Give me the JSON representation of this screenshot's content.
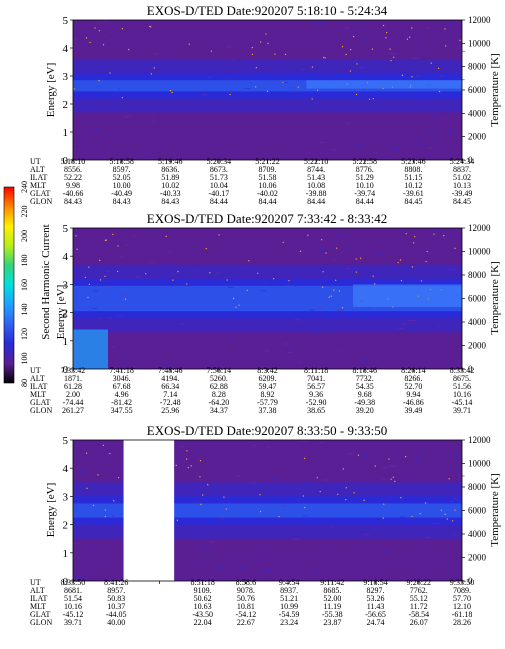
{
  "colors": {
    "background": "#5a1f95",
    "band_mid": "#2a2ad8",
    "band_core": "#2f62f0",
    "band_bright": "#3f86ff",
    "colorbar": [
      "#000000",
      "#5a1f95",
      "#2a2ad8",
      "#2f62f0",
      "#1ea0ff",
      "#00e0e0",
      "#33d47a",
      "#b8ee18",
      "#fff000",
      "#ff8800",
      "#ff0000"
    ]
  },
  "colorbar": {
    "label": "Second Harmonic Current",
    "ticks": [
      "80",
      "100",
      "120",
      "140",
      "160",
      "180",
      "200",
      "220",
      "240"
    ]
  },
  "row_labels": [
    "UT",
    "ALT",
    "ILAT",
    "MLT",
    "GLAT",
    "GLON"
  ],
  "chart_data": [
    {
      "type": "heatmap",
      "title": "EXOS-D/TED   Date:920207   5:18:10 - 5:24:34",
      "ylabel": "Energy [eV]",
      "ylabel_right": "Temperature [K]",
      "ylim": [
        0,
        5
      ],
      "ylim_right": [
        0,
        12000
      ],
      "yticks": [
        "0",
        "1",
        "2",
        "3",
        "4",
        "5"
      ],
      "yticks_right": [
        "0",
        "2000",
        "4000",
        "6000",
        "8000",
        "10000",
        "12000"
      ],
      "band_energy_ev": [
        2.2,
        3.1
      ],
      "gap": null,
      "columns": [
        {
          "UT": "5:18:10",
          "ALT": "8556.",
          "ILAT": "52.22",
          "MLT": "9.98",
          "GLAT": "-40.66",
          "GLON": "84.43"
        },
        {
          "UT": "5:18:58",
          "ALT": "8597.",
          "ILAT": "52.05",
          "MLT": "10.00",
          "GLAT": "-40.49",
          "GLON": "84.43"
        },
        {
          "UT": "5:19:46",
          "ALT": "8636.",
          "ILAT": "51.89",
          "MLT": "10.02",
          "GLAT": "-40.33",
          "GLON": "84.43"
        },
        {
          "UT": "5:20:34",
          "ALT": "8673.",
          "ILAT": "51.73",
          "MLT": "10.04",
          "GLAT": "-40.17",
          "GLON": "84.44"
        },
        {
          "UT": "5:21:22",
          "ALT": "8709.",
          "ILAT": "51.58",
          "MLT": "10.06",
          "GLAT": "-40.02",
          "GLON": "84.44"
        },
        {
          "UT": "5:22:10",
          "ALT": "8744.",
          "ILAT": "51.43",
          "MLT": "10.08",
          "GLAT": "-39.88",
          "GLON": "84.44"
        },
        {
          "UT": "5:22:58",
          "ALT": "8776.",
          "ILAT": "51.29",
          "MLT": "10.10",
          "GLAT": "-39.74",
          "GLON": "84.44"
        },
        {
          "UT": "5:23:46",
          "ALT": "8808.",
          "ILAT": "51.15",
          "MLT": "10.12",
          "GLAT": "-39.61",
          "GLON": "84.45"
        },
        {
          "UT": "5:24:34",
          "ALT": "8837.",
          "ILAT": "51.02",
          "MLT": "10.13",
          "GLAT": "-39.49",
          "GLON": "84.45"
        }
      ]
    },
    {
      "type": "heatmap",
      "title": "EXOS-D/TED   Date:920207   7:33:42 - 8:33:42",
      "ylabel": "Energy [eV]",
      "ylabel_right": "Temperature [K]",
      "ylim": [
        0,
        5
      ],
      "ylim_right": [
        0,
        12000
      ],
      "yticks": [
        "0",
        "1",
        "2",
        "3",
        "4",
        "5"
      ],
      "yticks_right": [
        "0",
        "2000",
        "4000",
        "6000",
        "8000",
        "10000",
        "12000"
      ],
      "band_energy_ev": [
        1.8,
        3.2
      ],
      "gap": null,
      "columns": [
        {
          "UT": "7:33:42",
          "ALT": "1871.",
          "ILAT": "61.28",
          "MLT": "2.00",
          "GLAT": "-74.44",
          "GLON": "261.27"
        },
        {
          "UT": "7:41:18",
          "ALT": "3046.",
          "ILAT": "67.68",
          "MLT": "4.96",
          "GLAT": "-81.42",
          "GLON": "347.55"
        },
        {
          "UT": "7:48:46",
          "ALT": "4194.",
          "ILAT": "66.34",
          "MLT": "7.14",
          "GLAT": "-72.48",
          "GLON": "25.96"
        },
        {
          "UT": "7:56:14",
          "ALT": "5260.",
          "ILAT": "62.88",
          "MLT": "8.28",
          "GLAT": "-64.20",
          "GLON": "34.37"
        },
        {
          "UT": "8:3:42",
          "ALT": "6209.",
          "ILAT": "59.47",
          "MLT": "8.92",
          "GLAT": "-57.79",
          "GLON": "37.38"
        },
        {
          "UT": "8:11:18",
          "ALT": "7041.",
          "ILAT": "56.57",
          "MLT": "9.36",
          "GLAT": "-52.90",
          "GLON": "38.65"
        },
        {
          "UT": "8:18:46",
          "ALT": "7732.",
          "ILAT": "54.35",
          "MLT": "9.68",
          "GLAT": "-49.38",
          "GLON": "39.20"
        },
        {
          "UT": "8:26:14",
          "ALT": "8266.",
          "ILAT": "52.70",
          "MLT": "9.94",
          "GLAT": "-46.86",
          "GLON": "39.49"
        },
        {
          "UT": "8:33:42",
          "ALT": "8675.",
          "ILAT": "51.56",
          "MLT": "10.16",
          "GLAT": "-45.14",
          "GLON": "39.71"
        }
      ]
    },
    {
      "type": "heatmap",
      "title": "EXOS-D/TED   Date:920207   8:33:50 - 9:33:50",
      "ylabel": "Energy [eV]",
      "ylabel_right": "Temperature [K]",
      "ylim": [
        0,
        5
      ],
      "ylim_right": [
        0,
        12000
      ],
      "yticks": [
        "0",
        "1",
        "2",
        "3",
        "4",
        "5"
      ],
      "yticks_right": [
        "0",
        "2000",
        "4000",
        "6000",
        "8000",
        "10000",
        "12000"
      ],
      "band_energy_ev": [
        2.0,
        3.0
      ],
      "gap": [
        0.13,
        0.26
      ],
      "columns": [
        {
          "UT": "8:33:50",
          "ALT": "8681.",
          "ILAT": "51.54",
          "MLT": "10.16",
          "GLAT": "-45.12",
          "GLON": "39.71"
        },
        {
          "UT": "8:41:26",
          "ALT": "8957.",
          "ILAT": "50.83",
          "MLT": "10.37",
          "GLAT": "-44.05",
          "GLON": "40.00"
        },
        {
          "UT": "",
          "ALT": "",
          "ILAT": "",
          "MLT": "",
          "GLAT": "",
          "GLON": ""
        },
        {
          "UT": "8:51:18",
          "ALT": "9109.",
          "ILAT": "50.62",
          "MLT": "10.63",
          "GLAT": "-43.50",
          "GLON": "22.04"
        },
        {
          "UT": "8:58:6",
          "ALT": "9078.",
          "ILAT": "50.76",
          "MLT": "10.81",
          "GLAT": "-54.12",
          "GLON": "22.67"
        },
        {
          "UT": "9:4:54",
          "ALT": "8937.",
          "ILAT": "51.21",
          "MLT": "10.99",
          "GLAT": "-54.59",
          "GLON": "23.24"
        },
        {
          "UT": "9:11:42",
          "ALT": "8685.",
          "ILAT": "52.00",
          "MLT": "11.19",
          "GLAT": "-55.38",
          "GLON": "23.87"
        },
        {
          "UT": "9:18:54",
          "ALT": "8297.",
          "ILAT": "53.26",
          "MLT": "11.43",
          "GLAT": "-56.65",
          "GLON": "24.74"
        },
        {
          "UT": "9:26:22",
          "ALT": "7762.",
          "ILAT": "55.12",
          "MLT": "11.72",
          "GLAT": "-58.54",
          "GLON": "26.07"
        },
        {
          "UT": "9:33:50",
          "ALT": "7089.",
          "ILAT": "57.70",
          "MLT": "12.10",
          "GLAT": "-61.18",
          "GLON": "28.26"
        }
      ]
    }
  ]
}
